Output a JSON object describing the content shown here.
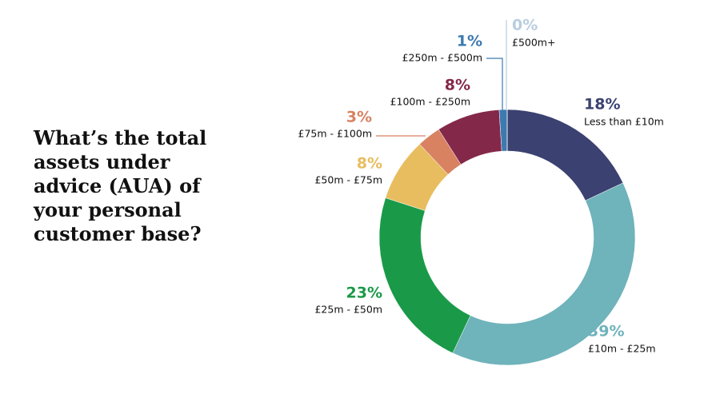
{
  "chart_data": {
    "type": "donut",
    "title": "What’s the total assets under advice (AUA) of your personal customer base?",
    "categories": [
      "Less than £10m",
      "£10m - £25m",
      "£25m - £50m",
      "£50m - £75m",
      "£75m - £100m",
      "£100m - £250m",
      "£250m - £500m",
      "£500m+"
    ],
    "values": [
      18,
      39,
      23,
      8,
      3,
      8,
      1,
      0
    ],
    "value_labels": [
      "18%",
      "39%",
      "23%",
      "8%",
      "3%",
      "8%",
      "1%",
      "0%"
    ],
    "colors": [
      "#3b4170",
      "#6fb3bb",
      "#1a9a48",
      "#e8bd5f",
      "#d88262",
      "#84284a",
      "#3d7ab0",
      "#b8cde0"
    ]
  }
}
